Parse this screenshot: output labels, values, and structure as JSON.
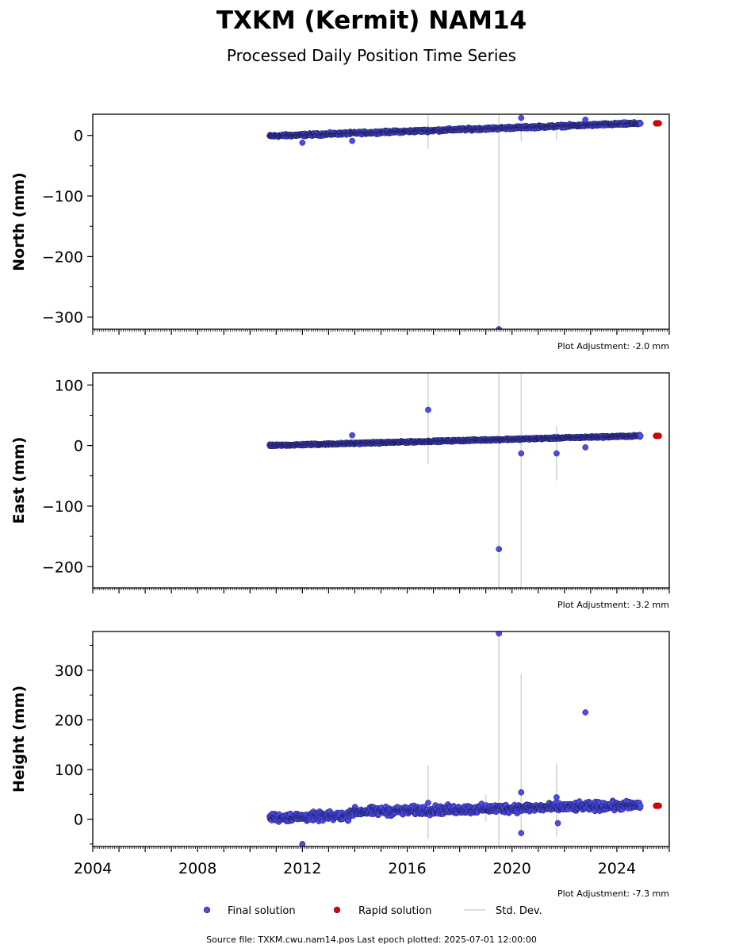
{
  "figure": {
    "title": "TXKM (Kermit) NAM14",
    "subtitle": "Processed Daily Position Time Series",
    "footer": "Source file: TXKM.cwu.nam14.pos  Last epoch plotted: 2025-07-01 12:00:00"
  },
  "legend": {
    "final_label": "Final solution",
    "rapid_label": "Rapid solution",
    "std_label": "Std. Dev."
  },
  "colors": {
    "final": "#4b4bf0",
    "final_edge": "#1a1a4a",
    "rapid": "#e00000",
    "std": "#d3d3d3"
  },
  "chart_data": [
    {
      "type": "scatter",
      "ylabel": "North (mm)",
      "adjustment": "Plot Adjustment: -2.0 mm",
      "xlim": [
        2004.0,
        2026.0
      ],
      "ylim": [
        -320,
        35
      ],
      "yticks": [
        0,
        -100,
        -200,
        -300
      ],
      "ytick_labels": [
        "0",
        "−100",
        "−200",
        "−300"
      ],
      "trend": {
        "start": [
          2010.75,
          -1
        ],
        "end": [
          2024.9,
          20
        ],
        "noise": 3
      },
      "outliers": [
        [
          2012.0,
          -12
        ],
        [
          2013.9,
          -9
        ],
        [
          2019.5,
          -320
        ],
        [
          2020.35,
          29
        ],
        [
          2022.8,
          26
        ]
      ],
      "std_bars": [
        [
          2016.8,
          -22,
          35
        ],
        [
          2019.5,
          -320,
          35
        ],
        [
          2020.35,
          -10,
          35
        ],
        [
          2021.7,
          -8,
          20
        ]
      ],
      "rapid": [
        [
          2025.5,
          20
        ],
        [
          2025.6,
          20
        ]
      ]
    },
    {
      "type": "scatter",
      "ylabel": "East (mm)",
      "adjustment": "Plot Adjustment: -3.2 mm",
      "xlim": [
        2004.0,
        2026.0
      ],
      "ylim": [
        -235,
        120
      ],
      "yticks": [
        100,
        0,
        -100,
        -200
      ],
      "ytick_labels": [
        "100",
        "0",
        "−100",
        "−200"
      ],
      "trend": {
        "start": [
          2010.75,
          0
        ],
        "end": [
          2024.9,
          16
        ],
        "noise": 2
      },
      "outliers": [
        [
          2013.9,
          17
        ],
        [
          2016.8,
          59
        ],
        [
          2019.5,
          -171
        ],
        [
          2020.35,
          -13
        ],
        [
          2021.7,
          -13
        ],
        [
          2022.8,
          -3
        ]
      ],
      "std_bars": [
        [
          2016.8,
          -30,
          120
        ],
        [
          2019.5,
          -235,
          120
        ],
        [
          2020.35,
          -235,
          120
        ],
        [
          2021.7,
          -58,
          32
        ]
      ],
      "rapid": [
        [
          2025.5,
          16
        ],
        [
          2025.6,
          16
        ]
      ]
    },
    {
      "type": "scatter",
      "ylabel": "Height (mm)",
      "adjustment": "Plot Adjustment: -7.3 mm",
      "xlim": [
        2004.0,
        2026.0
      ],
      "ylim": [
        -55,
        378
      ],
      "yticks": [
        300,
        200,
        100,
        0
      ],
      "ytick_labels": [
        "300",
        "200",
        "100",
        "0"
      ],
      "xticks": [
        2004,
        2008,
        2012,
        2016,
        2020,
        2024
      ],
      "xtick_labels": [
        "2004",
        "2008",
        "2012",
        "2016",
        "2020",
        "2024"
      ],
      "trend": {
        "start": [
          2010.75,
          3
        ],
        "end": [
          2024.9,
          20
        ],
        "noise": 12,
        "step": [
          2013.8,
          13
        ]
      },
      "outliers": [
        [
          2012.0,
          -50
        ],
        [
          2016.8,
          33
        ],
        [
          2019.5,
          374
        ],
        [
          2020.35,
          54
        ],
        [
          2020.35,
          -28
        ],
        [
          2021.7,
          44
        ],
        [
          2021.75,
          -8
        ],
        [
          2022.8,
          215
        ]
      ],
      "std_bars": [
        [
          2016.8,
          -40,
          108
        ],
        [
          2019.0,
          -5,
          50
        ],
        [
          2019.5,
          -55,
          378
        ],
        [
          2020.35,
          -30,
          292
        ],
        [
          2021.7,
          -35,
          112
        ]
      ],
      "rapid": [
        [
          2025.5,
          27
        ],
        [
          2025.6,
          27
        ]
      ]
    }
  ]
}
